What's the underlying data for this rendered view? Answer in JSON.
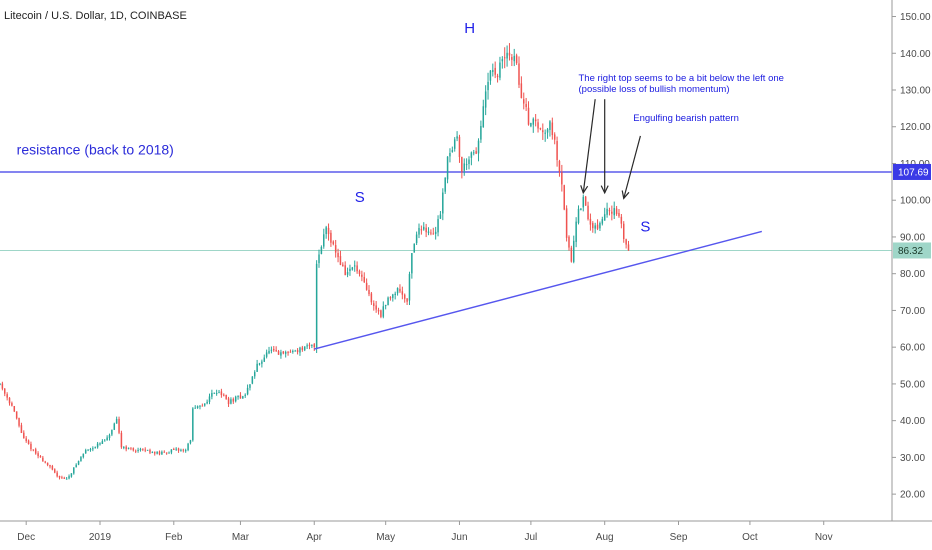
{
  "chart_data": {
    "type": "candlestick",
    "title": "Litecoin / U.S. Dollar, 1D, COINBASE",
    "ylim": [
      15,
      153
    ],
    "y_ticks": [
      "150.00",
      "140.00",
      "130.00",
      "120.00",
      "110.00",
      "100.00",
      "90.00",
      "80.00",
      "70.00",
      "60.00",
      "50.00",
      "40.00",
      "30.00",
      "20.00"
    ],
    "y_tick_values": [
      150,
      140,
      130,
      120,
      110,
      100,
      90,
      80,
      70,
      60,
      50,
      40,
      30,
      20
    ],
    "x_ticks": [
      "Dec",
      "2019",
      "Feb",
      "Mar",
      "Apr",
      "May",
      "Jun",
      "Jul",
      "Aug",
      "Sep",
      "Oct",
      "Nov"
    ],
    "x_tick_dates": [
      "2018-12-01",
      "2019-01-01",
      "2019-02-01",
      "2019-03-01",
      "2019-04-01",
      "2019-05-01",
      "2019-06-01",
      "2019-07-01",
      "2019-08-01",
      "2019-09-01",
      "2019-10-01",
      "2019-11-01"
    ],
    "x_range": [
      "2018-11-20",
      "2019-11-28"
    ],
    "colors": {
      "up": "#26a69a",
      "down": "#ef5350",
      "resistance_line": "#3a3ae6",
      "trend_line": "#5656ee",
      "current_line": "#9fd6c8",
      "axis_text": "#4a4a4a",
      "annotation": "#1f1fe8"
    },
    "resistance": {
      "value": 107.69,
      "label": "107.69"
    },
    "current_price": {
      "value": 86.32,
      "label": "86.32"
    },
    "trendline": {
      "start": [
        "2019-04-01",
        59.5
      ],
      "end": [
        "2019-10-06",
        91.5
      ]
    },
    "anchors": [
      [
        "2018-11-20",
        50
      ],
      [
        "2018-11-25",
        44
      ],
      [
        "2018-11-30",
        35
      ],
      [
        "2018-12-05",
        31
      ],
      [
        "2018-12-10",
        28
      ],
      [
        "2018-12-14",
        25
      ],
      [
        "2018-12-18",
        24
      ],
      [
        "2018-12-22",
        28
      ],
      [
        "2018-12-26",
        32
      ],
      [
        "2018-12-30",
        33
      ],
      [
        "2019-01-04",
        35
      ],
      [
        "2019-01-08",
        40
      ],
      [
        "2019-01-10",
        33
      ],
      [
        "2019-01-15",
        32
      ],
      [
        "2019-01-20",
        32
      ],
      [
        "2019-01-26",
        31
      ],
      [
        "2019-02-01",
        32
      ],
      [
        "2019-02-06",
        32
      ],
      [
        "2019-02-08",
        35
      ],
      [
        "2019-02-09",
        43
      ],
      [
        "2019-02-13",
        44
      ],
      [
        "2019-02-18",
        48
      ],
      [
        "2019-02-20",
        48
      ],
      [
        "2019-02-24",
        45
      ],
      [
        "2019-02-27",
        46
      ],
      [
        "2019-03-03",
        47
      ],
      [
        "2019-03-08",
        55
      ],
      [
        "2019-03-13",
        59
      ],
      [
        "2019-03-18",
        58
      ],
      [
        "2019-03-23",
        59
      ],
      [
        "2019-03-30",
        60
      ],
      [
        "2019-04-01",
        60.5
      ],
      [
        "2019-04-02",
        83
      ],
      [
        "2019-04-04",
        88
      ],
      [
        "2019-04-06",
        93
      ],
      [
        "2019-04-10",
        86
      ],
      [
        "2019-04-14",
        80
      ],
      [
        "2019-04-18",
        82
      ],
      [
        "2019-04-22",
        77
      ],
      [
        "2019-04-26",
        71
      ],
      [
        "2019-04-29",
        69
      ],
      [
        "2019-05-02",
        73
      ],
      [
        "2019-05-06",
        76
      ],
      [
        "2019-05-10",
        73
      ],
      [
        "2019-05-12",
        86
      ],
      [
        "2019-05-14",
        91
      ],
      [
        "2019-05-17",
        93
      ],
      [
        "2019-05-21",
        90
      ],
      [
        "2019-05-24",
        97
      ],
      [
        "2019-05-27",
        112
      ],
      [
        "2019-05-31",
        117
      ],
      [
        "2019-06-02",
        108
      ],
      [
        "2019-06-05",
        112
      ],
      [
        "2019-06-08",
        112
      ],
      [
        "2019-06-11",
        125
      ],
      [
        "2019-06-14",
        135
      ],
      [
        "2019-06-16",
        133
      ],
      [
        "2019-06-19",
        138
      ],
      [
        "2019-06-22",
        140
      ],
      [
        "2019-06-25",
        137
      ],
      [
        "2019-06-27",
        128
      ],
      [
        "2019-06-30",
        122
      ],
      [
        "2019-07-03",
        121
      ],
      [
        "2019-07-06",
        118
      ],
      [
        "2019-07-09",
        122
      ],
      [
        "2019-07-12",
        112
      ],
      [
        "2019-07-14",
        105
      ],
      [
        "2019-07-16",
        90
      ],
      [
        "2019-07-18",
        84
      ],
      [
        "2019-07-20",
        95
      ],
      [
        "2019-07-23",
        100
      ],
      [
        "2019-07-26",
        93
      ],
      [
        "2019-07-30",
        93
      ],
      [
        "2019-08-02",
        98
      ],
      [
        "2019-08-05",
        97
      ],
      [
        "2019-08-07",
        95
      ],
      [
        "2019-08-09",
        90
      ],
      [
        "2019-08-11",
        86.3
      ]
    ],
    "annotations": [
      {
        "text": "resistance (back to 2018)",
        "date": "2018-11-27",
        "price": 112.5,
        "style": "big"
      },
      {
        "text": "S",
        "date": "2019-04-18",
        "price": 99.5,
        "style": "pattern"
      },
      {
        "text": "H",
        "date": "2019-06-03",
        "price": 145.5,
        "style": "pattern"
      },
      {
        "text": "S",
        "date": "2019-08-16",
        "price": 91.5,
        "style": "pattern"
      },
      {
        "text": "The right top seems to be a bit below the left one",
        "date": "2019-07-21",
        "price": 132.5,
        "style": "small"
      },
      {
        "text": "(possible loss of bullish momentum)",
        "date": "2019-07-21",
        "price": 129.5,
        "style": "small"
      },
      {
        "text": "Engulfing bearish pattern",
        "date": "2019-08-13",
        "price": 121.5,
        "style": "small"
      }
    ],
    "arrows": [
      {
        "from": [
          "2019-07-28",
          127.5
        ],
        "to": [
          "2019-07-23",
          102.0
        ]
      },
      {
        "from": [
          "2019-08-01",
          127.5
        ],
        "to": [
          "2019-08-01",
          102.0
        ]
      },
      {
        "from": [
          "2019-08-16",
          117.5
        ],
        "to": [
          "2019-08-09",
          100.5
        ]
      }
    ]
  }
}
